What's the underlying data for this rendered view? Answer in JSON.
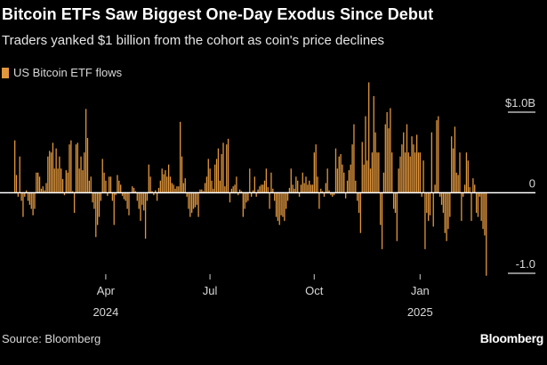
{
  "title": "Bitcoin ETFs Saw Biggest One-Day Exodus Since Debut",
  "subtitle": "Traders yanked $1 billion from the cohort as coin's price declines",
  "source": "Source: Bloomberg",
  "brand": "Bloomberg",
  "colors": {
    "bar": "#e0963d",
    "background": "#000000",
    "axis": "#ffffff"
  },
  "chart_data": {
    "type": "bar",
    "title": "",
    "legend": {
      "entries": [
        "US Bitcoin ETF flows"
      ],
      "placement": "top-left"
    },
    "series": [
      {
        "name": "US Bitcoin ETF flows",
        "values": [
          0.65,
          0.22,
          -0.05,
          0.45,
          -0.1,
          -0.3,
          -0.05,
          0.03,
          -0.1,
          -0.15,
          -0.2,
          -0.28,
          -0.2,
          0.25,
          0.25,
          0.2,
          0.05,
          0.08,
          0.03,
          0.12,
          0.45,
          0.52,
          0.5,
          0.62,
          0.3,
          0.55,
          0.3,
          0.45,
          0.3,
          0.17,
          -0.03,
          0.28,
          0.25,
          0.6,
          0.65,
          0.02,
          -0.25,
          0.6,
          0.62,
          0.3,
          0.45,
          0.28,
          0.5,
          1.04,
          0.68,
          0.15,
          0.2,
          -0.12,
          -0.2,
          -0.55,
          -0.4,
          -0.3,
          -0.1,
          0.42,
          0.25,
          0.15,
          -0.04,
          0.2,
          0.2,
          -0.1,
          -0.4,
          -0.03,
          0.22,
          0.15,
          0.1,
          -0.04,
          -0.08,
          -0.1,
          -0.2,
          -0.28,
          0,
          0.08,
          0.06,
          0.02,
          -0.1,
          -0.2,
          -0.35,
          -0.15,
          -0.22,
          -0.57,
          -0.1,
          0.35,
          0.2,
          0.02,
          -0.03,
          0.03,
          -0.1,
          0.06,
          0.15,
          0.3,
          0.23,
          0.28,
          0.2,
          0.35,
          0.2,
          0.12,
          0.1,
          0.05,
          0.08,
          0.08,
          0.88,
          0.45,
          0.12,
          0.18,
          -0.05,
          -0.2,
          -0.3,
          -0.25,
          -0.2,
          -0.18,
          -0.15,
          -0.3,
          0.04,
          0.04,
          0.02,
          0.12,
          0.2,
          0.42,
          0.3,
          0.15,
          0.05,
          0.35,
          0.42,
          0.55,
          0.15,
          0.48,
          0.62,
          0.08,
          0.6,
          0.67,
          -0.12,
          0.05,
          0.08,
          0.1,
          0.2,
          -0.03,
          0.04,
          0.02,
          -0.3,
          -0.2,
          -0.12,
          -0.1,
          0.3,
          -0.05,
          0.03,
          0.2,
          -0.05,
          0.04,
          0.08,
          0.1,
          0.1,
          0.15,
          0.3,
          0.07,
          -0.2,
          0.25,
          0.05,
          -0.1,
          -0.3,
          -0.35,
          -0.4,
          -0.28,
          -0.3,
          -0.35,
          -0.2,
          -0.1,
          0.06,
          0.3,
          0.1,
          0.05,
          0.2,
          0.15,
          -0.05,
          0.1,
          0.25,
          0.12,
          0.2,
          0.1,
          0.15,
          0.1,
          0.1,
          0.5,
          0.6,
          0.2,
          -0.2,
          0.05,
          0.02,
          -0.05,
          0.12,
          0.3,
          0.03,
          -0.03,
          -0.05,
          -0.03,
          0.55,
          0.3,
          0.45,
          0.48,
          0.35,
          0.25,
          -0.07,
          0.15,
          0.28,
          0.35,
          0.6,
          0.85,
          0.15,
          -0.1,
          -0.25,
          -0.5,
          0.63,
          0.35,
          0.95,
          0.4,
          1.37,
          0.3,
          0.5,
          1.2,
          0.75,
          0.5,
          0.5,
          -0.4,
          -0.7,
          0.25,
          0.85,
          1.0,
          0.8,
          1.05,
          0.5,
          -0.2,
          -0.25,
          -0.6,
          0.3,
          0.45,
          0.6,
          0.75,
          0.5,
          0.85,
          0.5,
          0.45,
          0.7,
          0.6,
          0.5,
          0.72,
          0.5,
          0.5,
          -0.05,
          0.4,
          -0.7,
          -0.25,
          -0.35,
          -0.28,
          0.75,
          -0.42,
          0.1,
          0.9,
          0.95,
          -0.05,
          -0.15,
          -0.25,
          -0.5,
          -0.6,
          -0.45,
          -0.3,
          0.7,
          0.55,
          0.82,
          0.25,
          0.22,
          0.5,
          -0.35,
          -0.05,
          0.1,
          0.5,
          0.4,
          0.07,
          -0.35,
          0.18,
          0.1,
          -0.25,
          -0.3,
          -0.05,
          -0.35,
          -0.45,
          -0.53,
          -1.03
        ]
      }
    ],
    "x_ticks": [
      {
        "label": "Apr",
        "year": "2024",
        "index": 55
      },
      {
        "label": "Jul",
        "year": "",
        "index": 118
      },
      {
        "label": "Oct",
        "year": "",
        "index": 181
      },
      {
        "label": "Jan",
        "year": "2025",
        "index": 245
      }
    ],
    "y_ticks": [
      {
        "value": 1.0,
        "label": "$1.0B"
      },
      {
        "value": 0,
        "label": "0"
      },
      {
        "value": -1.0,
        "label": "-1.0"
      }
    ],
    "ylim": [
      -1.1,
      1.4
    ],
    "xlabel": "",
    "ylabel": "",
    "grid": false
  }
}
